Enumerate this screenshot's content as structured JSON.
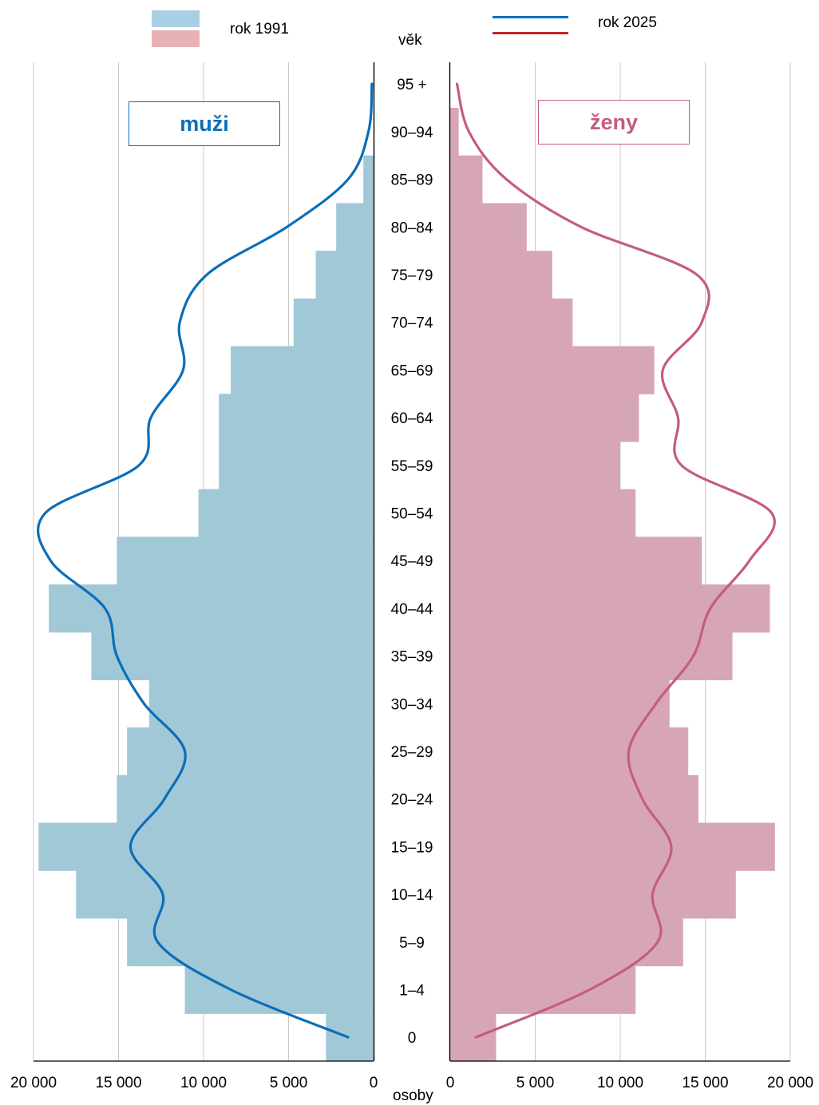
{
  "legend": {
    "label_1991": "rok 1991",
    "label_2025": "rok 2025"
  },
  "axis": {
    "age_title": "věk",
    "x_title": "osoby"
  },
  "boxes": {
    "men": "muži",
    "women": "ženy"
  },
  "colors": {
    "men_bar": "#a1c8d6",
    "women_bar": "#d7a6b6",
    "legend_1991_men": "#a9cfe4",
    "legend_1991_women": "#e8b2b5",
    "men_line": "#0a6eb9",
    "women_line": "#c45c82",
    "legend_2025_women": "#c0282d",
    "grid": "#c8c8c8"
  },
  "chart_data": {
    "type": "population-pyramid",
    "categories": [
      "0",
      "1–4",
      "5–9",
      "10–14",
      "15–19",
      "20–24",
      "25–29",
      "30–34",
      "35–39",
      "40–44",
      "45–49",
      "50–54",
      "55–59",
      "60–64",
      "65–69",
      "70–74",
      "75–79",
      "80–84",
      "85–89",
      "90–94",
      "95 +"
    ],
    "xlim": [
      0,
      20000
    ],
    "ticks": [
      0,
      5000,
      10000,
      15000,
      20000
    ],
    "tick_labels_left": [
      "20 000",
      "15 000",
      "10 000",
      "5 000",
      "0"
    ],
    "tick_labels_right": [
      "0",
      "5 000",
      "10 000",
      "15 000",
      "20 000"
    ],
    "grid": true,
    "series": [
      {
        "name": "rok 1991",
        "sex": "muži",
        "kind": "bar",
        "values": [
          2800,
          11100,
          14500,
          17500,
          19700,
          15100,
          14500,
          13200,
          16600,
          19100,
          15100,
          10300,
          9100,
          9100,
          8400,
          4700,
          3400,
          2200,
          600,
          0,
          0
        ]
      },
      {
        "name": "rok 1991",
        "sex": "ženy",
        "kind": "bar",
        "values": [
          2700,
          10900,
          13700,
          16800,
          19100,
          14600,
          14000,
          12900,
          16600,
          18800,
          14800,
          10900,
          10000,
          11100,
          12000,
          7200,
          6000,
          4500,
          1900,
          500,
          0
        ]
      },
      {
        "name": "rok 2025",
        "sex": "muži",
        "kind": "line",
        "values": [
          1500,
          8400,
          12700,
          12400,
          14300,
          12300,
          11100,
          13500,
          15100,
          15800,
          19000,
          19300,
          13800,
          13100,
          11200,
          11400,
          9800,
          5100,
          1500,
          300,
          100
        ]
      },
      {
        "name": "rok 2025",
        "sex": "ženy",
        "kind": "line",
        "values": [
          1500,
          8200,
          12200,
          11900,
          13000,
          11300,
          10500,
          12100,
          14300,
          15300,
          17600,
          18900,
          13600,
          13400,
          12500,
          14800,
          14500,
          7700,
          3300,
          1100,
          400
        ]
      }
    ]
  }
}
